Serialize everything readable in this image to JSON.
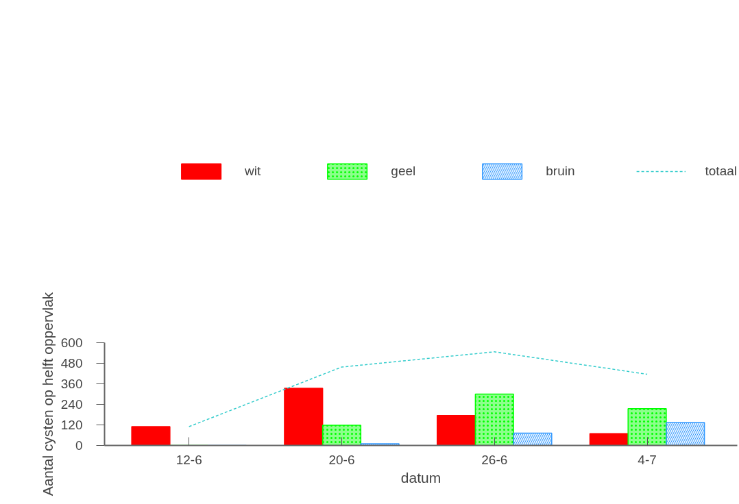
{
  "chart_data": {
    "type": "bar",
    "xlabel": "datum",
    "ylabel": "Aantal cysten op helft oppervlak",
    "categories": [
      "12-6",
      "20-6",
      "26-6",
      "4-7"
    ],
    "series": [
      {
        "name": "wit",
        "color": "#ff0000",
        "values": [
          110,
          334,
          175,
          69
        ]
      },
      {
        "name": "geel",
        "color": "#00ff00",
        "values": [
          0,
          118,
          300,
          215
        ]
      },
      {
        "name": "bruin",
        "color": "#3399ff",
        "values": [
          0,
          10,
          72,
          134
        ]
      },
      {
        "name": "totaal",
        "type": "line",
        "color": "#33cccc",
        "line_style": "dashed",
        "values": [
          110,
          458,
          547,
          416
        ]
      }
    ],
    "ylim": [
      0,
      600
    ],
    "yticks": [
      0,
      120,
      240,
      360,
      480,
      600
    ],
    "grid": false,
    "legend": "top"
  }
}
